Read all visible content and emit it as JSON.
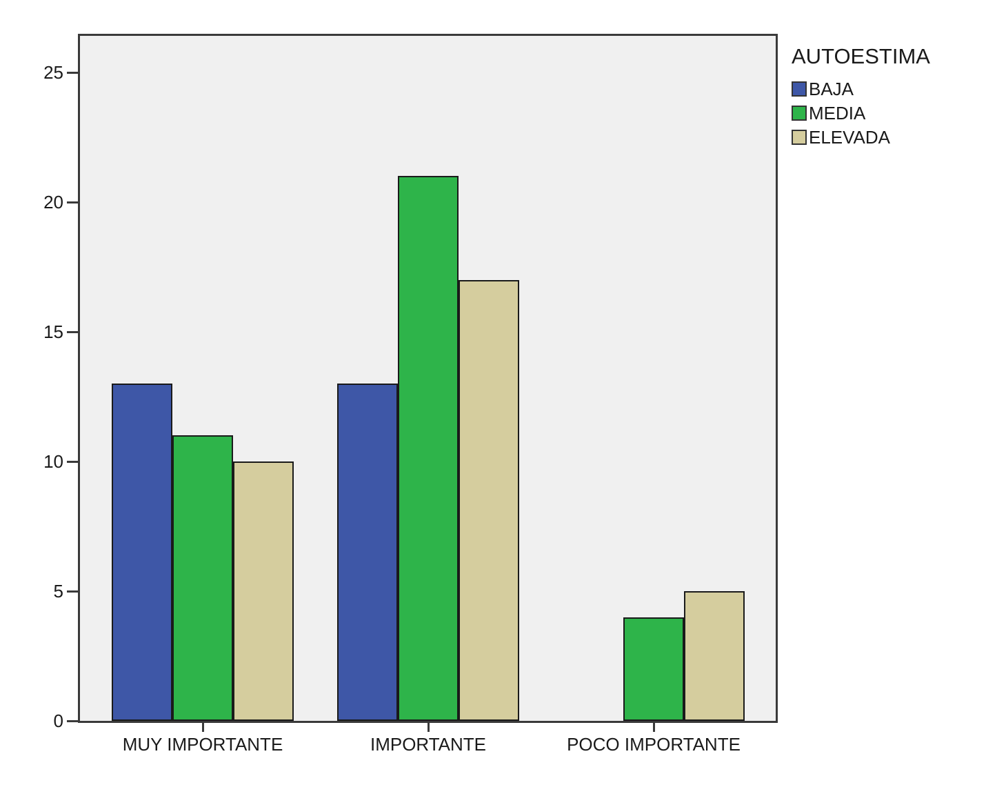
{
  "chart_data": {
    "type": "bar",
    "title": "",
    "categories": [
      "MUY IMPORTANTE",
      "IMPORTANTE",
      "POCO IMPORTANTE"
    ],
    "series": [
      {
        "name": "BAJA",
        "color": "#3E57A7",
        "values": [
          13,
          13,
          0
        ]
      },
      {
        "name": "MEDIA",
        "color": "#2EB44A",
        "values": [
          11,
          21,
          4
        ]
      },
      {
        "name": "ELEVADA",
        "color": "#D5CD9E",
        "values": [
          10,
          17,
          5
        ]
      }
    ],
    "legend_title": "AUTOESTIMA",
    "legend_position": "top-right-outside",
    "yticks": [
      0,
      5,
      10,
      15,
      20,
      25
    ],
    "ylim": [
      0,
      26.4
    ],
    "xlabel": "",
    "ylabel": "",
    "grid": false
  },
  "colors": {
    "plot_bg": "#F0F0F0",
    "frame": "#3A3A3A",
    "bar_border": "#1A1A1A",
    "text": "#1A1A1A",
    "page_bg": "#FFFFFF"
  }
}
